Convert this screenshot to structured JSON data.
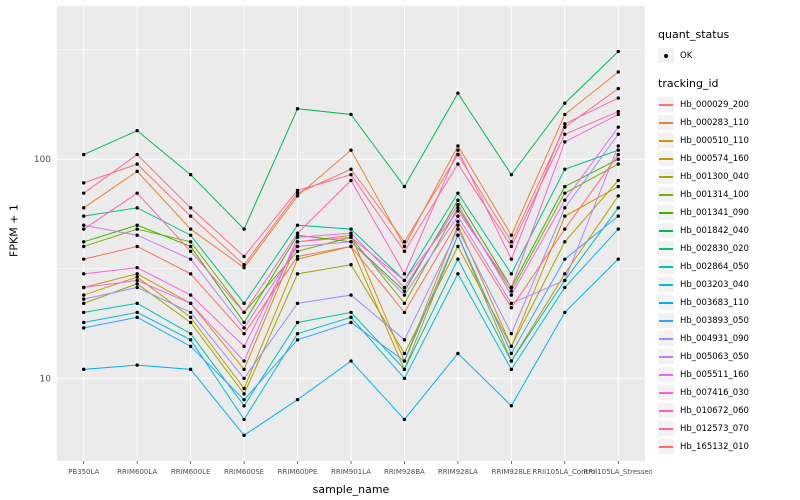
{
  "figure": {
    "background": "#FFFFFF",
    "panel_background": "#EBEBEB",
    "grid_color": "#FFFFFF",
    "axis_text_color": "#4D4D4D",
    "point_color": "#000000"
  },
  "legend": {
    "quant_status_title": "quant_status",
    "quant_status_items": [
      {
        "label": "OK"
      }
    ],
    "tracking_title": "tracking_id"
  },
  "chart_data": {
    "type": "line",
    "title": "",
    "xlabel": "sample_name",
    "ylabel": "FPKM + 1",
    "y_scale": "log10",
    "grid": true,
    "legend_position": "right",
    "y_ticks": [
      10,
      100
    ],
    "y_minor_ticks": [
      3.162,
      31.62,
      316.2
    ],
    "ylim": [
      4.2,
      500
    ],
    "categories": [
      "PB350LA",
      "RRIM600LA",
      "RRIM600LE",
      "RRIM600SE",
      "RRIM600PE",
      "RRIM901LA",
      "RRIM928BA",
      "RRIM928LA",
      "RRIM928LE",
      "RRII105LA_Control",
      "RRII105LA_Stressed"
    ],
    "series": [
      {
        "name": "Hb_000029_200",
        "color": "#F8766D",
        "values": [
          78,
          95,
          55,
          33,
          70,
          90,
          42,
          105,
          42,
          140,
          210
        ]
      },
      {
        "name": "Hb_000283_110",
        "color": "#EA8331",
        "values": [
          60,
          88,
          48,
          32,
          68,
          110,
          40,
          115,
          45,
          160,
          250
        ]
      },
      {
        "name": "Hb_000510_110",
        "color": "#D89000",
        "values": [
          26,
          30,
          22,
          11,
          42,
          45,
          12,
          50,
          14,
          55,
          75
        ]
      },
      {
        "name": "Hb_000574_160",
        "color": "#C09B00",
        "values": [
          24,
          29,
          19,
          9,
          35,
          40,
          11,
          45,
          12,
          30,
          68
        ]
      },
      {
        "name": "Hb_001300_040",
        "color": "#A3A500",
        "values": [
          22,
          27,
          18,
          8.5,
          30,
          33,
          13,
          40,
          14,
          42,
          80
        ]
      },
      {
        "name": "Hb_001314_100",
        "color": "#7CAE00",
        "values": [
          40,
          48,
          42,
          20,
          38,
          44,
          22,
          60,
          25,
          70,
          95
        ]
      },
      {
        "name": "Hb_001341_090",
        "color": "#39B600",
        "values": [
          42,
          50,
          40,
          18,
          45,
          42,
          25,
          65,
          26,
          75,
          100
        ]
      },
      {
        "name": "Hb_001842_040",
        "color": "#00BB4E",
        "values": [
          105,
          135,
          85,
          48,
          170,
          160,
          75,
          200,
          85,
          180,
          310
        ]
      },
      {
        "name": "Hb_002830_020",
        "color": "#00C08B",
        "values": [
          55,
          60,
          45,
          22,
          50,
          48,
          28,
          70,
          30,
          90,
          110
        ]
      },
      {
        "name": "Hb_002864_050",
        "color": "#00C0AF",
        "values": [
          20,
          22,
          16,
          7.5,
          18,
          20,
          11,
          35,
          12,
          28,
          60
        ]
      },
      {
        "name": "Hb_003203_040",
        "color": "#00BCD8",
        "values": [
          18,
          20,
          15,
          6.5,
          16,
          19,
          10,
          30,
          11,
          26,
          48
        ]
      },
      {
        "name": "Hb_003683_110",
        "color": "#00B0F6",
        "values": [
          11,
          11.5,
          11,
          5.5,
          8,
          12,
          6.5,
          13,
          7.5,
          20,
          35
        ]
      },
      {
        "name": "Hb_003893_050",
        "color": "#35A2FF",
        "values": [
          17,
          19,
          14,
          8,
          15,
          18,
          12,
          45,
          13,
          35,
          55
        ]
      },
      {
        "name": "Hb_004931_090",
        "color": "#9590FF",
        "values": [
          23,
          26,
          20,
          10,
          22,
          24,
          15,
          48,
          16,
          60,
          130
        ]
      },
      {
        "name": "Hb_005063_050",
        "color": "#C77CFF",
        "values": [
          50,
          45,
          35,
          17,
          40,
          42,
          24,
          55,
          22,
          28,
          115
        ]
      },
      {
        "name": "Hb_005511_160",
        "color": "#E76BF3",
        "values": [
          26,
          28,
          22,
          12,
          44,
          46,
          26,
          62,
          24,
          65,
          140
        ]
      },
      {
        "name": "Hb_007416_030",
        "color": "#FA62DB",
        "values": [
          30,
          32,
          24,
          14,
          42,
          44,
          28,
          58,
          26,
          120,
          160
        ]
      },
      {
        "name": "Hb_010672_060",
        "color": "#FF62BC",
        "values": [
          48,
          70,
          38,
          20,
          46,
          80,
          30,
          110,
          35,
          145,
          190
        ]
      },
      {
        "name": "Hb_012573_070",
        "color": "#FF6A98",
        "values": [
          70,
          105,
          60,
          36,
          72,
          85,
          38,
          95,
          40,
          130,
          165
        ]
      },
      {
        "name": "Hb_165132_010",
        "color": "#FF6C67",
        "values": [
          35,
          40,
          30,
          16,
          36,
          40,
          20,
          52,
          21,
          48,
          105
        ]
      }
    ]
  }
}
